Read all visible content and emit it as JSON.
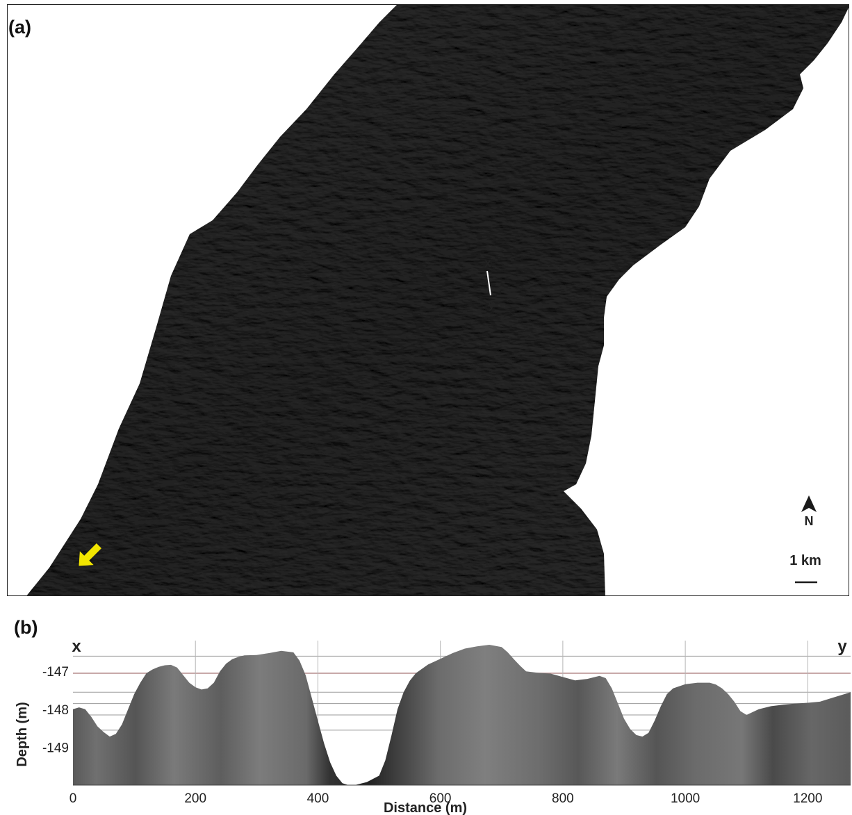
{
  "figure": {
    "panel_a_label": "(a)",
    "panel_b_label": "(b)"
  },
  "map": {
    "transect_start_label": "x",
    "transect_end_label": "y",
    "north_label": "N",
    "scale_label": "1 km",
    "arrow_color": "#f2e500",
    "terrain_color": "#4e4e4e",
    "icons": [
      "north-arrow-icon",
      "yellow-direction-arrow-icon"
    ]
  },
  "chart_data": {
    "type": "area",
    "start_label": "x",
    "end_label": "y",
    "xlabel": "Distance (m)",
    "ylabel": "Depth (m)",
    "xlim": [
      0,
      1270
    ],
    "ylim": [
      -150.0,
      -146.3
    ],
    "x_ticks": [
      0,
      200,
      400,
      600,
      800,
      1000,
      1200
    ],
    "y_ticks": [
      -147,
      -148,
      -149
    ],
    "vertical_gridlines": [
      200,
      400,
      600,
      800,
      1000,
      1200
    ],
    "horizontal_gridlines": [
      -146.6,
      -147.05,
      -147.55,
      -147.85,
      -148.15,
      -148.55
    ],
    "highlight_gridline": -147.05,
    "highlight_color": "#b89090",
    "x": [
      0,
      10,
      20,
      30,
      40,
      50,
      60,
      70,
      80,
      90,
      100,
      110,
      120,
      130,
      140,
      150,
      160,
      170,
      180,
      190,
      200,
      210,
      220,
      230,
      240,
      250,
      260,
      270,
      280,
      300,
      320,
      340,
      360,
      370,
      380,
      390,
      400,
      410,
      420,
      430,
      440,
      450,
      460,
      480,
      500,
      510,
      520,
      530,
      540,
      550,
      560,
      580,
      600,
      620,
      640,
      660,
      680,
      700,
      710,
      720,
      730,
      740,
      760,
      780,
      800,
      820,
      840,
      860,
      870,
      880,
      890,
      900,
      910,
      920,
      930,
      940,
      950,
      960,
      970,
      980,
      1000,
      1020,
      1040,
      1050,
      1060,
      1070,
      1080,
      1090,
      1100,
      1120,
      1140,
      1160,
      1180,
      1200,
      1220,
      1240,
      1260,
      1270
    ],
    "depth": [
      -148.0,
      -147.95,
      -148.0,
      -148.2,
      -148.45,
      -148.6,
      -148.72,
      -148.65,
      -148.4,
      -148.0,
      -147.6,
      -147.3,
      -147.05,
      -146.95,
      -146.88,
      -146.84,
      -146.83,
      -146.9,
      -147.1,
      -147.3,
      -147.42,
      -147.48,
      -147.45,
      -147.3,
      -147.0,
      -146.8,
      -146.68,
      -146.62,
      -146.58,
      -146.57,
      -146.52,
      -146.46,
      -146.5,
      -146.72,
      -147.1,
      -147.7,
      -148.3,
      -148.9,
      -149.4,
      -149.75,
      -149.95,
      -150.0,
      -150.0,
      -149.92,
      -149.75,
      -149.35,
      -148.7,
      -148.0,
      -147.55,
      -147.25,
      -147.05,
      -146.82,
      -146.67,
      -146.52,
      -146.4,
      -146.34,
      -146.3,
      -146.36,
      -146.5,
      -146.68,
      -146.85,
      -147.0,
      -147.04,
      -147.06,
      -147.15,
      -147.24,
      -147.2,
      -147.12,
      -147.18,
      -147.45,
      -147.85,
      -148.25,
      -148.52,
      -148.68,
      -148.72,
      -148.62,
      -148.3,
      -147.92,
      -147.6,
      -147.45,
      -147.34,
      -147.3,
      -147.3,
      -147.35,
      -147.45,
      -147.6,
      -147.8,
      -148.05,
      -148.15,
      -148.0,
      -147.92,
      -147.88,
      -147.85,
      -147.83,
      -147.8,
      -147.7,
      -147.6,
      -147.55
    ]
  }
}
